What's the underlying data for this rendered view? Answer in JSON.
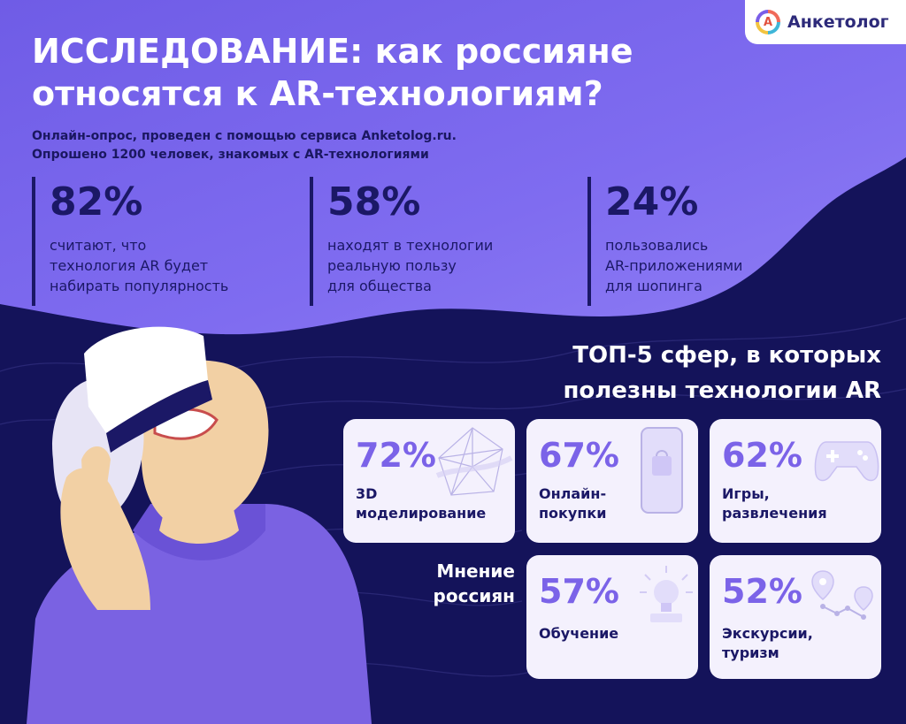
{
  "logo": {
    "mark": "A",
    "name": "Анкетолог"
  },
  "title_lines": [
    "ИССЛЕДОВАНИЕ: как россияне",
    "относятся к AR-технологиям?"
  ],
  "subtitle_lines": [
    "Онлайн-опрос, проведен с помощью сервиса Anketolog.ru.",
    "Опрошено 1200 человек, знакомых с AR-технологиями"
  ],
  "stats": [
    {
      "value": "82%",
      "desc": [
        "считают,  что",
        "технология AR будет",
        "набирать популярность"
      ]
    },
    {
      "value": "58%",
      "desc": [
        "находят в технологии",
        "реальную пользу",
        "для общества"
      ]
    },
    {
      "value": "24%",
      "desc": [
        "пользовались",
        "AR-приложениями",
        "для шопинга"
      ]
    }
  ],
  "top5": {
    "title_lines": [
      "ТОП-5 сфер, в которых",
      "полезны технологии AR"
    ],
    "items": [
      {
        "value": "72%",
        "label": [
          "3D",
          "моделирование"
        ],
        "icon": "3d-model-icon"
      },
      {
        "value": "67%",
        "label": [
          "Онлайн-",
          "покупки"
        ],
        "icon": "smartphone-shopping-icon"
      },
      {
        "value": "62%",
        "label": [
          "Игры,",
          "развлечения"
        ],
        "icon": "gamepad-icon"
      },
      {
        "value": "57%",
        "label": [
          "Обучение"
        ],
        "icon": "lightbulb-book-icon"
      },
      {
        "value": "52%",
        "label": [
          "Экскурсии,",
          "туризм"
        ],
        "icon": "map-route-icon"
      }
    ]
  },
  "opinion_lines": [
    "Мнение",
    "россиян"
  ],
  "colors": {
    "accent": "#7b63e8",
    "dark": "#1b1866",
    "light_purple": "#8a76f2"
  },
  "illustration": "person-vr-headset-icon"
}
